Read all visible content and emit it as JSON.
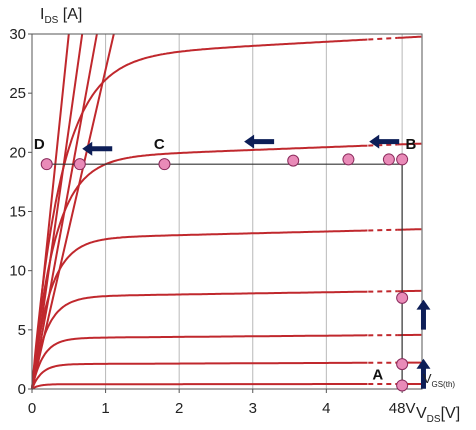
{
  "chart_data": {
    "type": "line",
    "title": "",
    "ylabel": {
      "main": "I",
      "sub": "DS",
      "unit": " [A]"
    },
    "xlabel": {
      "main": "V",
      "sub": "DS",
      "unit": "[V]"
    },
    "xlim": [
      0,
      5.3
    ],
    "ylim": [
      0,
      30
    ],
    "break_at_x": [
      4.57,
      4.97
    ],
    "x_ticks": [
      {
        "v": 0,
        "label": "0"
      },
      {
        "v": 1,
        "label": "1"
      },
      {
        "v": 2,
        "label": "2"
      },
      {
        "v": 3,
        "label": "3"
      },
      {
        "v": 4,
        "label": "4"
      },
      {
        "v": 5.03,
        "label": "48V"
      }
    ],
    "y_ticks": [
      0,
      5,
      10,
      15,
      20,
      25,
      30
    ],
    "grid": "vertical only",
    "curve_color": "#c0282d",
    "series": [
      {
        "type": "steep",
        "slope": 60
      },
      {
        "type": "steep",
        "slope": 44
      },
      {
        "type": "steep",
        "slope": 34
      },
      {
        "type": "steep",
        "slope": 27
      },
      {
        "type": "sat",
        "isat": 28.0,
        "knee": 0.9
      },
      {
        "type": "sat",
        "isat": 19.5,
        "knee": 0.7
      },
      {
        "type": "sat",
        "isat": 12.7,
        "knee": 0.55
      },
      {
        "type": "sat",
        "isat": 7.8,
        "knee": 0.45
      },
      {
        "type": "sat",
        "isat": 4.3,
        "knee": 0.35
      },
      {
        "type": "sat",
        "isat": 2.1,
        "knee": 0.3
      },
      {
        "type": "sat",
        "isat": 0.4,
        "knee": 0.2
      }
    ],
    "path_color": "#333333",
    "path": [
      [
        5.03,
        0.3
      ],
      [
        5.03,
        19.0
      ],
      [
        0.2,
        19.0
      ]
    ],
    "points_color": "#e98bb8",
    "points": [
      {
        "x": 0.2,
        "y": 19.0
      },
      {
        "x": 0.65,
        "y": 19.0
      },
      {
        "x": 1.8,
        "y": 19.0
      },
      {
        "x": 3.55,
        "y": 19.3
      },
      {
        "x": 4.3,
        "y": 19.4
      },
      {
        "x": 4.85,
        "y": 19.4
      },
      {
        "x": 5.03,
        "y": 19.4
      },
      {
        "x": 5.03,
        "y": 7.7
      },
      {
        "x": 5.03,
        "y": 2.1
      },
      {
        "x": 5.03,
        "y": 0.3
      }
    ],
    "point_labels": [
      {
        "text": "D",
        "x": 0.1,
        "y": 20.3
      },
      {
        "text": "C",
        "x": 1.73,
        "y": 20.3
      },
      {
        "text": "B",
        "x": 5.15,
        "y": 20.3
      },
      {
        "text": "A",
        "x": 4.7,
        "y": 0.8
      }
    ],
    "arrows_color": "#0d1e57",
    "arrows": [
      {
        "x": 0.9,
        "y": 20.3,
        "dir": "left"
      },
      {
        "x": 3.1,
        "y": 20.9,
        "dir": "left"
      },
      {
        "x": 4.8,
        "y": 20.9,
        "dir": "left"
      },
      {
        "x": 5.32,
        "y": 6.2,
        "dir": "up"
      },
      {
        "x": 5.32,
        "y": 1.2,
        "dir": "up"
      }
    ],
    "vgs_label": {
      "main": "V",
      "sub": "GS(th)",
      "x": 5.42,
      "y": 0.5
    }
  }
}
